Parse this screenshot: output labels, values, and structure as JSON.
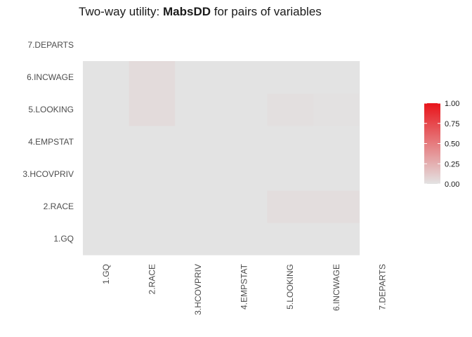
{
  "title": {
    "prefix": "Two-way utility: ",
    "bold": "MabsDD",
    "suffix": " for pairs of variables"
  },
  "chart_data": {
    "type": "heatmap",
    "title": "Two-way utility: MabsDD for pairs of variables",
    "variables": [
      "1.GQ",
      "2.RACE",
      "3.HCOVPRIV",
      "4.EMPSTAT",
      "5.LOOKING",
      "6.INCWAGE",
      "7.DEPARTS"
    ],
    "upper_triangle": [
      [
        null,
        0.01,
        0.0,
        0.0,
        0.0,
        0.0,
        0.0
      ],
      [
        null,
        null,
        0.0,
        0.0,
        0.0,
        0.03,
        0.03
      ],
      [
        null,
        null,
        null,
        0.0,
        0.0,
        0.0,
        0.0
      ],
      [
        null,
        null,
        null,
        null,
        0.0,
        0.0,
        0.0
      ],
      [
        null,
        null,
        null,
        null,
        null,
        0.02,
        0.01
      ],
      [
        null,
        null,
        null,
        null,
        null,
        null,
        0.0
      ],
      [
        null,
        null,
        null,
        null,
        null,
        null,
        null
      ]
    ],
    "lower_triangle": [
      [
        null,
        null,
        null,
        null,
        null,
        null,
        null
      ],
      [
        0.0,
        null,
        null,
        null,
        null,
        null,
        null
      ],
      [
        0.0,
        0.0,
        null,
        null,
        null,
        null,
        null
      ],
      [
        0.0,
        0.0,
        0.0,
        null,
        null,
        null,
        null
      ],
      [
        0.0,
        0.0,
        0.0,
        0.0,
        null,
        null,
        null
      ],
      [
        0.0,
        0.04,
        0.0,
        0.0,
        0.02,
        null,
        null
      ],
      [
        0.0,
        0.04,
        0.0,
        0.0,
        0.0,
        0.0,
        null
      ]
    ],
    "legend": {
      "ticks": [
        "1.00",
        "0.75",
        "0.50",
        "0.25",
        "0.00"
      ],
      "range": [
        0,
        1
      ],
      "low_color": "#e3e3e3",
      "high_color": "#e8141a",
      "position": "right"
    }
  }
}
